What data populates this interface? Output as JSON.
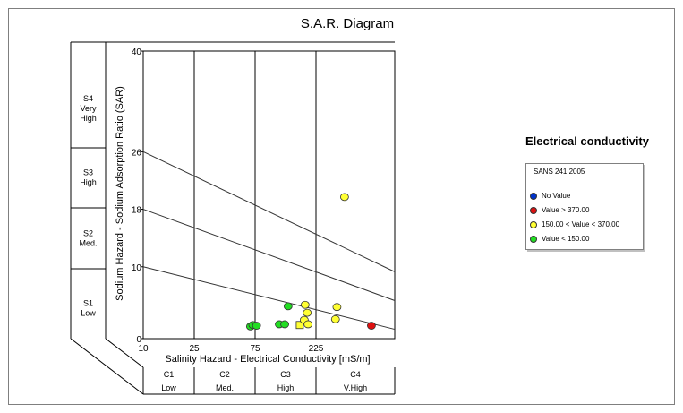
{
  "chart_data": {
    "type": "scatter",
    "title": "S.A.R. Diagram",
    "xlabel": "Salinity Hazard - Electrical Conductivity [mS/m]",
    "ylabel": "Sodium Hazard - Sodium Adsorption Ratio (SAR)",
    "x_ticks": [
      "10",
      "25",
      "75",
      "225"
    ],
    "y_ticks": [
      "0",
      "10",
      "18",
      "26",
      "40"
    ],
    "x_classes": [
      {
        "code": "C1",
        "label": "Low"
      },
      {
        "code": "C2",
        "label": "Med."
      },
      {
        "code": "C3",
        "label": "High"
      },
      {
        "code": "C4",
        "label": "V.High"
      }
    ],
    "y_classes": [
      {
        "code": "S4",
        "lines": [
          "S4",
          "Very",
          "High"
        ]
      },
      {
        "code": "S3",
        "lines": [
          "S3",
          "High"
        ]
      },
      {
        "code": "S2",
        "lines": [
          "S2",
          "Med."
        ]
      },
      {
        "code": "S1",
        "lines": [
          "S1",
          "Low"
        ]
      }
    ],
    "boundary_lines": [
      {
        "ec_from": 10,
        "sar_from": 26,
        "ec_to": 750,
        "sar_to": 9.3
      },
      {
        "ec_from": 10,
        "sar_from": 18,
        "ec_to": 750,
        "sar_to": 5.3
      },
      {
        "ec_from": 10,
        "sar_from": 10,
        "ec_to": 750,
        "sar_to": 1.3
      }
    ],
    "points": [
      {
        "ec": 69,
        "sar": 1.7,
        "class": "low",
        "shape": "circle"
      },
      {
        "ec": 72,
        "sar": 1.9,
        "class": "low",
        "shape": "circle"
      },
      {
        "ec": 77,
        "sar": 1.8,
        "class": "low",
        "shape": "circle"
      },
      {
        "ec": 116,
        "sar": 2.0,
        "class": "low",
        "shape": "circle"
      },
      {
        "ec": 128,
        "sar": 2.0,
        "class": "low",
        "shape": "circle"
      },
      {
        "ec": 136,
        "sar": 4.5,
        "class": "low",
        "shape": "circle"
      },
      {
        "ec": 168,
        "sar": 1.9,
        "class": "mid",
        "shape": "square"
      },
      {
        "ec": 182,
        "sar": 2.6,
        "class": "mid",
        "shape": "circle"
      },
      {
        "ec": 185,
        "sar": 4.7,
        "class": "mid",
        "shape": "circle"
      },
      {
        "ec": 192,
        "sar": 3.6,
        "class": "mid",
        "shape": "circle"
      },
      {
        "ec": 195,
        "sar": 2.0,
        "class": "mid",
        "shape": "circle"
      },
      {
        "ec": 303,
        "sar": 2.7,
        "class": "mid",
        "shape": "circle"
      },
      {
        "ec": 310,
        "sar": 4.4,
        "class": "mid",
        "shape": "circle"
      },
      {
        "ec": 348,
        "sar": 19.7,
        "class": "mid",
        "shape": "circle"
      },
      {
        "ec": 525,
        "sar": 1.8,
        "class": "high",
        "shape": "circle"
      }
    ],
    "legend": {
      "title": "Electrical conductivity",
      "standard": "SANS 241:2005",
      "items": [
        {
          "label": "No Value",
          "color": "#0033cc"
        },
        {
          "label": "Value > 370.00",
          "color": "#dd1111"
        },
        {
          "label": "150.00 < Value < 370.00",
          "color": "#ffff33"
        },
        {
          "label": "Value < 150.00",
          "color": "#22dd22"
        }
      ],
      "placement": "right"
    }
  }
}
